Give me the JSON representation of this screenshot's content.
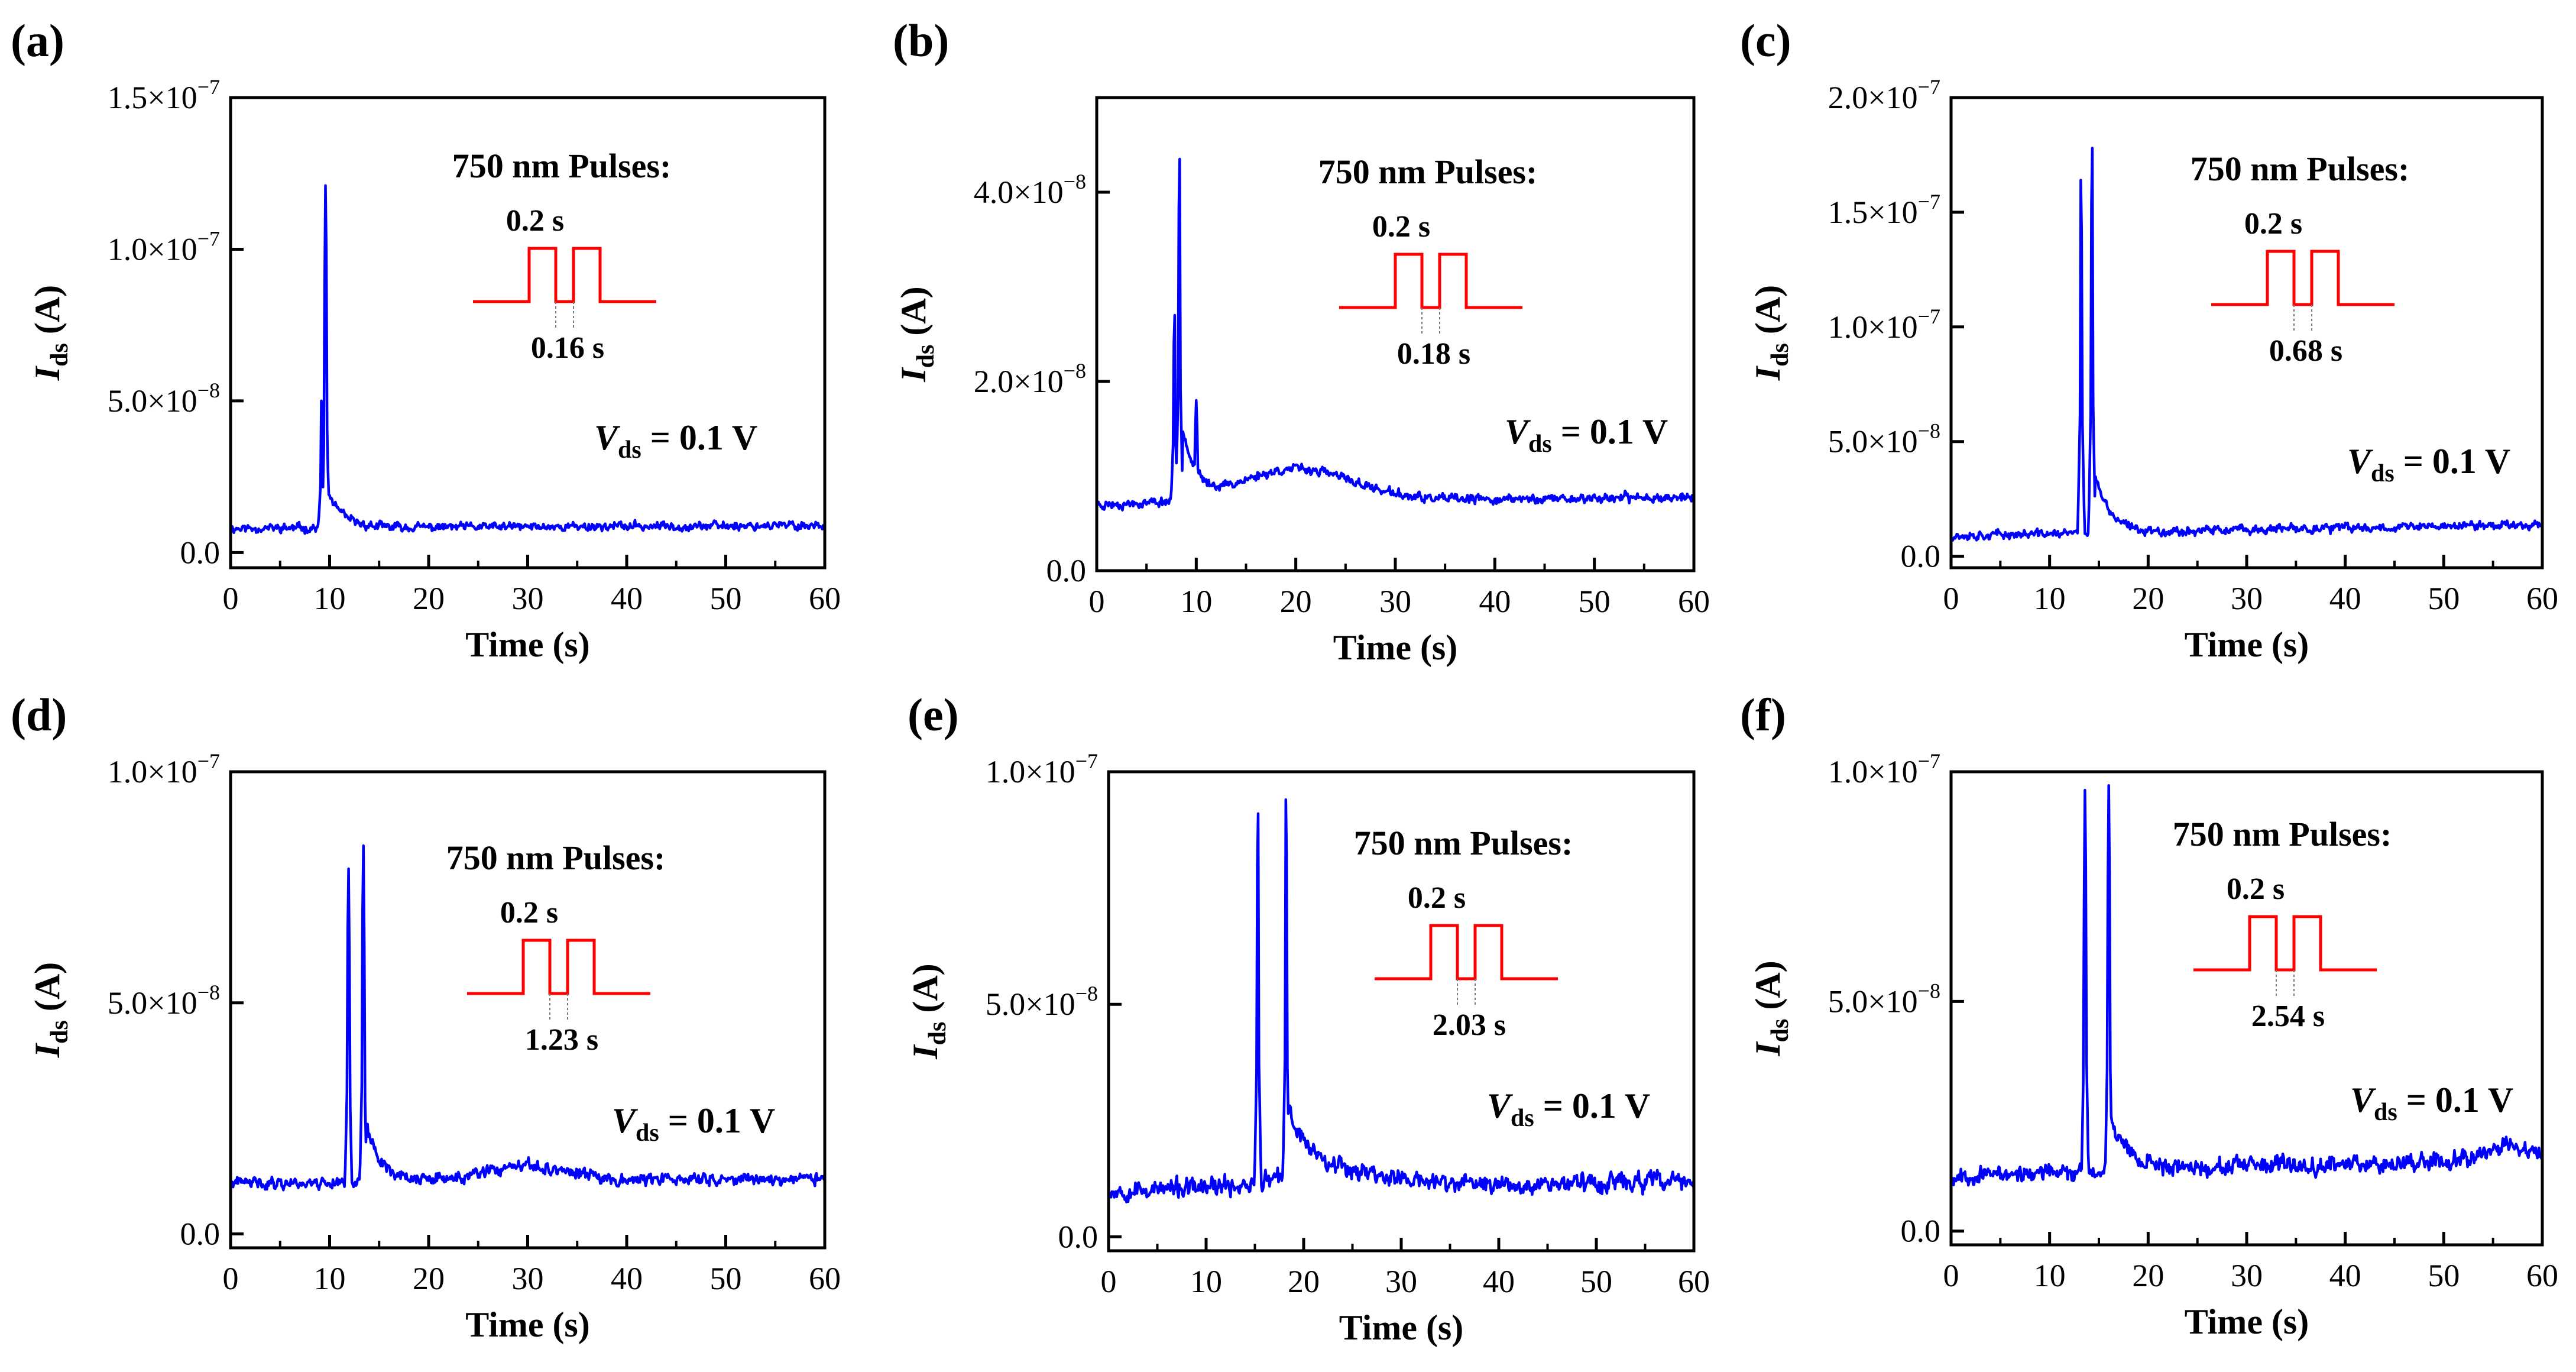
{
  "figure": {
    "panel_count": 6,
    "colors": {
      "trace": "#0000ff",
      "pulse": "#ff0000",
      "axis": "#000000",
      "background": "#ffffff"
    }
  },
  "chart_data": [
    {
      "panel_label": "(a)",
      "type": "line",
      "pulse_interval_s": 0.16,
      "title": "",
      "xlabel": "Time (s)",
      "ylabel_main": "I",
      "ylabel_sub": "ds",
      "ylabel_unit": " (A)",
      "xlim": [
        0,
        60
      ],
      "ylim": [
        -5e-09,
        1.5e-07
      ],
      "xticks": [
        0,
        10,
        20,
        30,
        40,
        50,
        60
      ],
      "yticks": [
        {
          "value": 0,
          "label": "0.0"
        },
        {
          "value": 5e-08,
          "label": "5.0×10",
          "exp": "−8"
        },
        {
          "value": 1e-07,
          "label": "1.0×10",
          "exp": "−7"
        },
        {
          "value": 1.5e-07,
          "label": "1.5×10",
          "exp": "−7"
        }
      ],
      "annotation": {
        "pulse_title": "750 nm Pulses:",
        "pulse_width": "0.2 s",
        "pulse_interval": "0.16 s",
        "bias_main": "V",
        "bias_sub": "ds",
        "bias_value": " = 0.1 V"
      },
      "series": [
        {
          "name": "I_ds",
          "baseline_start": 8e-09,
          "baseline_end": 9e-09,
          "noise": 1.2e-09,
          "peaks": [
            {
              "t": 9.2,
              "v": 5e-08
            },
            {
              "t": 9.6,
              "v": 1.21e-07
            }
          ],
          "decay": {
            "t": 9.8,
            "amp": 1.2e-08,
            "tau": 1.5
          },
          "seed": 11
        }
      ]
    },
    {
      "panel_label": "(b)",
      "type": "line",
      "pulse_interval_s": 0.18,
      "title": "",
      "xlabel": "Time (s)",
      "ylabel_main": "I",
      "ylabel_sub": "ds",
      "ylabel_unit": " (A)",
      "xlim": [
        0,
        60
      ],
      "ylim": [
        0,
        5e-08
      ],
      "xticks": [
        0,
        10,
        20,
        30,
        40,
        50,
        60
      ],
      "yticks": [
        {
          "value": 0,
          "label": "0.0"
        },
        {
          "value": 2e-08,
          "label": "2.0×10",
          "exp": "−8"
        },
        {
          "value": 4e-08,
          "label": "4.0×10",
          "exp": "−8"
        }
      ],
      "annotation": {
        "pulse_title": "750 nm Pulses:",
        "pulse_width": "0.2 s",
        "pulse_interval": "0.18 s",
        "bias_main": "V",
        "bias_sub": "ds",
        "bias_value": " = 0.1 V"
      },
      "series": [
        {
          "name": "I_ds",
          "baseline_start": 7e-09,
          "baseline_end": 7.8e-09,
          "noise": 4e-10,
          "peaks": [
            {
              "t": 7.8,
              "v": 2.7e-08
            },
            {
              "t": 8.3,
              "v": 4.35e-08
            },
            {
              "t": 10.0,
              "v": 1.8e-08
            }
          ],
          "decay": {
            "t": 8.6,
            "amp": 8e-09,
            "tau": 1.3
          },
          "hump": {
            "t": 20,
            "amp": 3.5e-09,
            "width": 8
          },
          "seed": 23
        }
      ]
    },
    {
      "panel_label": "(c)",
      "type": "line",
      "pulse_interval_s": 0.68,
      "title": "",
      "xlabel": "Time (s)",
      "ylabel_main": "I",
      "ylabel_sub": "ds",
      "ylabel_unit": " (A)",
      "xlim": [
        0,
        60
      ],
      "ylim": [
        -5e-09,
        2e-07
      ],
      "xticks": [
        0,
        10,
        20,
        30,
        40,
        50,
        60
      ],
      "yticks": [
        {
          "value": 0,
          "label": "0.0"
        },
        {
          "value": 5e-08,
          "label": "5.0×10",
          "exp": "−8"
        },
        {
          "value": 1e-07,
          "label": "1.0×10",
          "exp": "−7"
        },
        {
          "value": 1.5e-07,
          "label": "1.5×10",
          "exp": "−7"
        },
        {
          "value": 2e-07,
          "label": "2.0×10",
          "exp": "−7"
        }
      ],
      "annotation": {
        "pulse_title": "750 nm Pulses:",
        "pulse_width": "0.2 s",
        "pulse_interval": "0.68 s",
        "bias_main": "V",
        "bias_sub": "ds",
        "bias_value": " = 0.1 V"
      },
      "series": [
        {
          "name": "I_ds",
          "baseline_start": 9e-09,
          "baseline_end": 1.4e-08,
          "noise": 1.6e-09,
          "peaks": [
            {
              "t": 13.2,
              "v": 1.64e-07
            },
            {
              "t": 14.3,
              "v": 1.78e-07
            }
          ],
          "decay": {
            "t": 14.6,
            "amp": 2.5e-08,
            "tau": 1.5
          },
          "seed": 37
        }
      ]
    },
    {
      "panel_label": "(d)",
      "type": "line",
      "pulse_interval_s": 1.23,
      "title": "",
      "xlabel": "Time (s)",
      "ylabel_main": "I",
      "ylabel_sub": "ds",
      "ylabel_unit": " (A)",
      "xlim": [
        0,
        60
      ],
      "ylim": [
        -3e-09,
        1e-07
      ],
      "xticks": [
        0,
        10,
        20,
        30,
        40,
        50,
        60
      ],
      "yticks": [
        {
          "value": 0,
          "label": "0.0"
        },
        {
          "value": 5e-08,
          "label": "5.0×10",
          "exp": "−8"
        },
        {
          "value": 1e-07,
          "label": "1.0×10",
          "exp": "−7"
        }
      ],
      "annotation": {
        "pulse_title": "750 nm Pulses:",
        "pulse_width": "0.2 s",
        "pulse_interval": "1.23 s",
        "bias_main": "V",
        "bias_sub": "ds",
        "bias_value": " = 0.1 V"
      },
      "series": [
        {
          "name": "I_ds",
          "baseline_start": 1.1e-08,
          "baseline_end": 1.2e-08,
          "noise": 1.1e-09,
          "peaks": [
            {
              "t": 11.9,
              "v": 7.9e-08
            },
            {
              "t": 13.4,
              "v": 8.4e-08
            }
          ],
          "decay": {
            "t": 13.7,
            "amp": 1.2e-08,
            "tau": 1.6
          },
          "hump": {
            "t": 30,
            "amp": 3e-09,
            "width": 6
          },
          "seed": 41
        }
      ]
    },
    {
      "panel_label": "(e)",
      "type": "line",
      "pulse_interval_s": 2.03,
      "title": "",
      "xlabel": "Time (s)",
      "ylabel_main": "I",
      "ylabel_sub": "ds",
      "ylabel_unit": " (A)",
      "xlim": [
        0,
        60
      ],
      "ylim": [
        -3e-09,
        1e-07
      ],
      "xticks": [
        0,
        10,
        20,
        30,
        40,
        50,
        60
      ],
      "yticks": [
        {
          "value": 0,
          "label": "0.0"
        },
        {
          "value": 5e-08,
          "label": "5.0×10",
          "exp": "−8"
        },
        {
          "value": 1e-07,
          "label": "1.0×10",
          "exp": "−7"
        }
      ],
      "annotation": {
        "pulse_title": "750 nm Pulses:",
        "pulse_width": "0.2 s",
        "pulse_interval": "2.03 s",
        "bias_main": "V",
        "bias_sub": "ds",
        "bias_value": " = 0.1 V"
      },
      "series": [
        {
          "name": "I_ds",
          "baseline_start": 1e-08,
          "baseline_end": 1.2e-08,
          "noise": 1.7e-09,
          "peaks": [
            {
              "t": 15.3,
              "v": 9.1e-08
            },
            {
              "t": 18.2,
              "v": 9.4e-08
            }
          ],
          "decay": {
            "t": 18.5,
            "amp": 1.4e-08,
            "tau": 2.5
          },
          "hump": {
            "t": 23,
            "amp": 3e-09,
            "width": 8
          },
          "seed": 53
        }
      ]
    },
    {
      "panel_label": "(f)",
      "type": "line",
      "pulse_interval_s": 2.54,
      "title": "",
      "xlabel": "Time (s)",
      "ylabel_main": "I",
      "ylabel_sub": "ds",
      "ylabel_unit": " (A)",
      "xlim": [
        0,
        60
      ],
      "ylim": [
        -3e-09,
        1e-07
      ],
      "xticks": [
        0,
        10,
        20,
        30,
        40,
        50,
        60
      ],
      "yticks": [
        {
          "value": 0,
          "label": "0.0"
        },
        {
          "value": 5e-08,
          "label": "5.0×10",
          "exp": "−8"
        },
        {
          "value": 1e-07,
          "label": "1.0×10",
          "exp": "−7"
        }
      ],
      "annotation": {
        "pulse_title": "750 nm Pulses:",
        "pulse_width": "0.2 s",
        "pulse_interval": "2.54 s",
        "bias_main": "V",
        "bias_sub": "ds",
        "bias_value": " = 0.1 V"
      },
      "series": [
        {
          "name": "I_ds",
          "baseline_start": 1.2e-08,
          "baseline_end": 1.6e-08,
          "noise": 1.5e-09,
          "peaks": [
            {
              "t": 13.6,
              "v": 9.6e-08
            },
            {
              "t": 16.0,
              "v": 9.7e-08
            }
          ],
          "decay": {
            "t": 16.3,
            "amp": 1.1e-08,
            "tau": 2.0
          },
          "hump": {
            "t": 56,
            "amp": 3e-09,
            "width": 3
          },
          "seed": 67
        }
      ]
    }
  ]
}
